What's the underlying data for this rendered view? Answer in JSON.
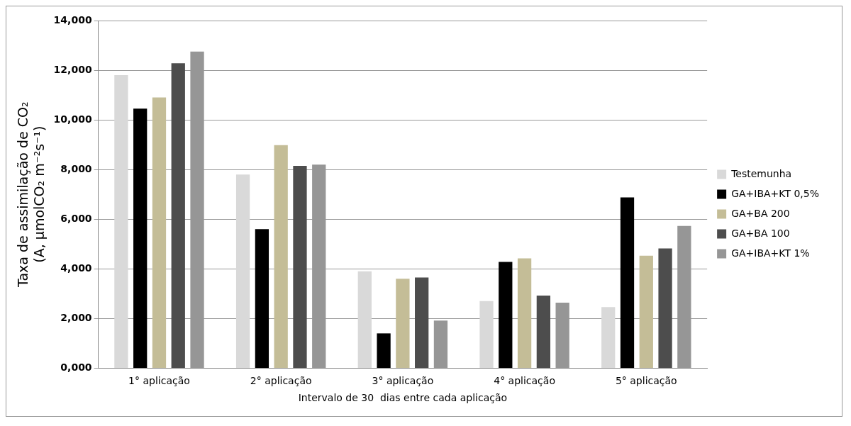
{
  "chart_data": {
    "type": "bar",
    "xlabel": "Intervalo de 30  dias entre cada aplicação",
    "ylabel": "Taxa de assimilação de CO₂\n(A, µmolCO₂ m⁻²s⁻¹)",
    "categories": [
      "1° aplicação",
      "2° aplicação",
      "3° aplicação",
      "4° aplicação",
      "5° aplicação"
    ],
    "series": [
      {
        "name": "Testemunha",
        "color": "#d9d9d9",
        "values": [
          11.8,
          7.8,
          3.9,
          2.7,
          2.46
        ]
      },
      {
        "name": "GA+IBA+KT 0,5%",
        "color": "#000000",
        "values": [
          10.45,
          5.6,
          1.4,
          4.28,
          6.88
        ]
      },
      {
        "name": "GA+BA 200",
        "color": "#c4bd97",
        "values": [
          10.9,
          8.98,
          3.6,
          4.42,
          4.53
        ]
      },
      {
        "name": "GA+BA 100",
        "color": "#4d4d4d",
        "values": [
          12.28,
          8.15,
          3.65,
          2.92,
          4.82
        ]
      },
      {
        "name": "GA+IBA+KT 1%",
        "color": "#969696",
        "values": [
          12.75,
          8.2,
          1.92,
          2.64,
          5.73
        ]
      }
    ],
    "ylim": [
      0,
      14
    ],
    "yticks": [
      {
        "value": 0,
        "label": "0,000"
      },
      {
        "value": 2,
        "label": "2,000"
      },
      {
        "value": 4,
        "label": "4,000"
      },
      {
        "value": 6,
        "label": "6,000"
      },
      {
        "value": 8,
        "label": "8,000"
      },
      {
        "value": 10,
        "label": "10,000"
      },
      {
        "value": 12,
        "label": "12,000"
      },
      {
        "value": 14,
        "label": "14,000"
      }
    ],
    "grid": "y",
    "legend": "right"
  }
}
